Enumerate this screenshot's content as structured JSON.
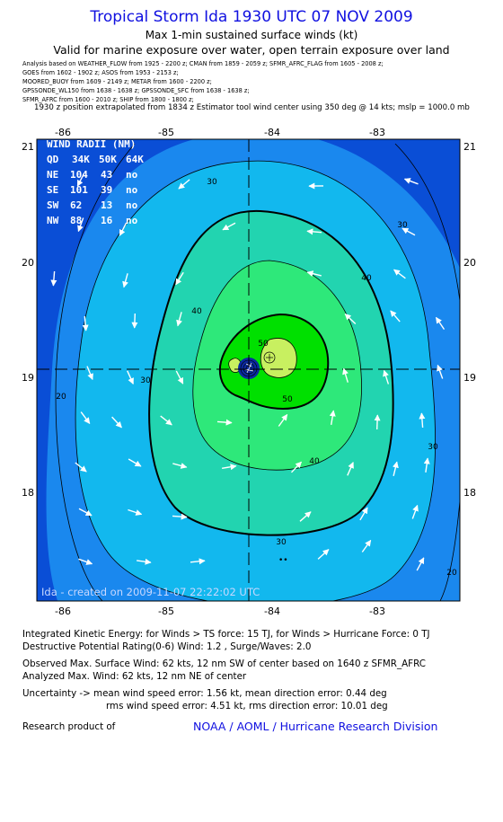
{
  "header": {
    "title": "Tropical Storm Ida 1930 UTC 07 NOV 2009",
    "subtitle": "Max 1-min sustained surface winds (kt)",
    "validity": "Valid for marine exposure over water, open terrain exposure over land"
  },
  "analysis_sources": [
    "Analysis based on  WEATHER_FLOW from 1925 - 2200 z;  CMAN from 1859 - 2059 z;  SFMR_AFRC_FLAG from 1605 - 2008 z;",
    "GOES from 1602 - 1902 z;  ASOS from 1953 - 2153 z;",
    "MOORED_BUOY from 1609 - 2149 z;  METAR from 1600 - 2200 z;",
    "GPSSONDE_WL150 from 1638 - 1638 z;  GPSSONDE_SFC from 1638 - 1638 z;",
    "SFMR_AFRC from 1600 - 2010 z;  SHIP from 1800 - 1800 z;"
  ],
  "position_note": "1930 z position extrapolated from 1834 z Estimator tool wind center using 350 deg @ 14 kts; mslp = 1000.0 mb",
  "map": {
    "lon_ticks": [
      "-86",
      "-85",
      "-84",
      "-83"
    ],
    "lat_ticks": [
      "21",
      "20",
      "19",
      "18"
    ],
    "lon_range": [
      -86.25,
      -82.25
    ],
    "lat_range": [
      17.12,
      21.05
    ],
    "center": {
      "lon": -84.0,
      "lat": 19.07
    },
    "contour_labels": [
      "20",
      "20",
      "30",
      "30",
      "30",
      "30",
      "30",
      "40",
      "40",
      "40",
      "50",
      "50"
    ],
    "creation_stamp": "Ida - created on 2009-11-07 22:22:02 UTC",
    "wind_radii_table": {
      "title": "WIND RADII (NM)",
      "header": [
        "QD",
        "34K",
        "50K",
        "64K"
      ],
      "rows": [
        [
          "NE",
          "104",
          "43",
          "no"
        ],
        [
          "SE",
          "101",
          "39",
          "no"
        ],
        [
          "SW",
          "62",
          "13",
          "no"
        ],
        [
          "NW",
          "88",
          "16",
          "no"
        ]
      ]
    },
    "colors": {
      "lt20": "#0a4ed6",
      "b20_30": "#1a88ee",
      "b30_40": "#12b8ee",
      "b40_50": "#22d4b0",
      "b50_60": "#2ee87a",
      "gt60": "#00e000",
      "peak": "#c8f060"
    }
  },
  "stats": {
    "ike": "Integrated Kinetic Energy: for Winds > TS force: 15 TJ,  for Winds > Hurricane Force: 0 TJ",
    "dpr": "Destructive Potential Rating(0-6)   Wind: 1.2 , Surge/Waves: 2.0",
    "observed_max": "Observed Max. Surface Wind: 62 kts, 12 nm SW of center based on 1640 z SFMR_AFRC",
    "analyzed_max": "Analyzed Max. Wind: 62 kts, 12 nm NE of center",
    "uncertainty_1": "Uncertainty -> mean wind speed error: 1.56 kt,   mean direction error: 0.44 deg",
    "uncertainty_2": "rms wind speed error: 4.51 kt,   rms direction error: 10.01 deg",
    "research_label": "Research product of",
    "research_org": "NOAA / AOML / Hurricane Research Division"
  }
}
